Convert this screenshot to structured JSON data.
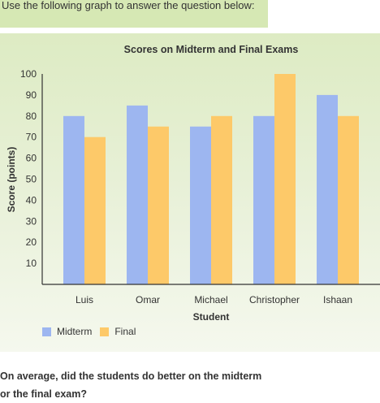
{
  "instruction": "Use the following graph to answer the question below:",
  "question": "On average, did the students do better on the midterm or the final exam?",
  "colors": {
    "midterm": "#9db6f0",
    "final": "#fdc969"
  },
  "chart_data": {
    "type": "bar",
    "title": "Scores on Midterm and Final Exams",
    "xlabel": "Student",
    "ylabel": "Score (points)",
    "categories": [
      "Luis",
      "Omar",
      "Michael",
      "Christopher",
      "Ishaan"
    ],
    "series": [
      {
        "name": "Midterm",
        "values": [
          80,
          85,
          75,
          80,
          90
        ]
      },
      {
        "name": "Final",
        "values": [
          70,
          75,
          80,
          100,
          80
        ]
      }
    ],
    "ylim": [
      0,
      100
    ],
    "yticks": [
      10,
      20,
      30,
      40,
      50,
      60,
      70,
      80,
      90,
      100
    ],
    "grid": false,
    "legend_position": "bottom-left"
  }
}
